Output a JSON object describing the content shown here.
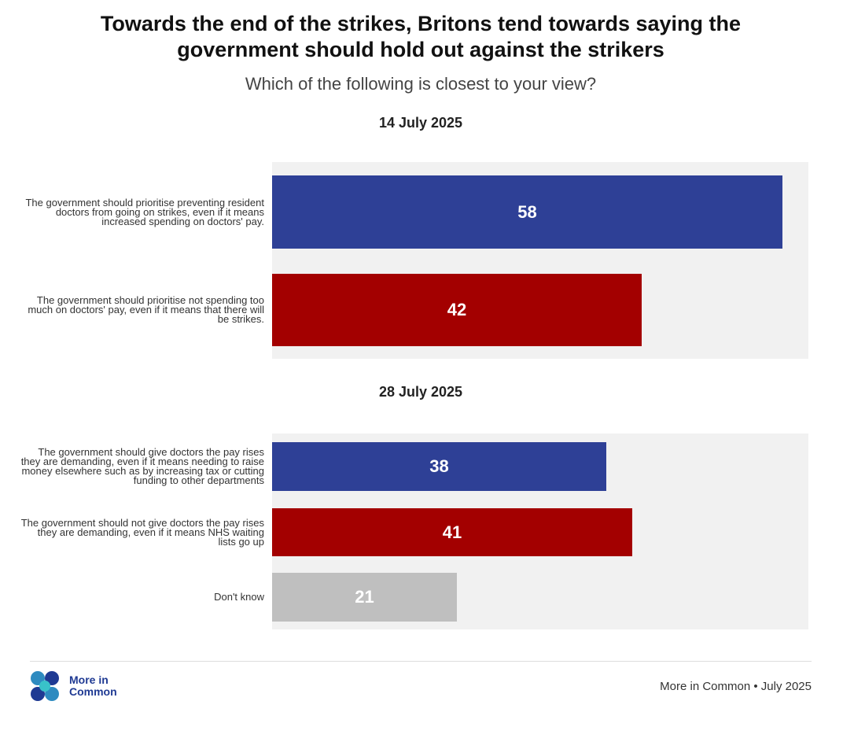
{
  "title": "Towards the end of the strikes, Britons tend towards saying the government should hold out against the strikers",
  "subtitle": "Which of the following is closest to your view?",
  "colors": {
    "blue": "#2e4096",
    "red": "#a30000",
    "grey": "#bfbfbf",
    "panel": "#f1f1f1"
  },
  "chart_data": [
    {
      "type": "bar",
      "orientation": "horizontal",
      "title": "14 July 2025",
      "xlim": [
        0,
        60
      ],
      "categories": [
        "The government should prioritise preventing resident doctors from going on strikes, even if it means increased spending on doctors' pay.",
        "The government should prioritise not spending too much on doctors' pay, even if it means that there will be strikes."
      ],
      "values": [
        58,
        42
      ],
      "colors": [
        "#2e4096",
        "#a30000"
      ]
    },
    {
      "type": "bar",
      "orientation": "horizontal",
      "title": "28 July 2025",
      "xlim": [
        0,
        60
      ],
      "categories": [
        "The government should give doctors the pay rises they are demanding, even if it means needing to raise money elsewhere such as by increasing tax or cutting funding to other departments",
        "The government should not give doctors the pay rises they are demanding, even if it means NHS waiting lists go up",
        "Don't know"
      ],
      "values": [
        38,
        41,
        21
      ],
      "colors": [
        "#2e4096",
        "#a30000",
        "#bfbfbf"
      ]
    }
  ],
  "footer": {
    "logo_line1": "More in",
    "logo_line2": "Common",
    "source": "More in Common • July 2025"
  }
}
